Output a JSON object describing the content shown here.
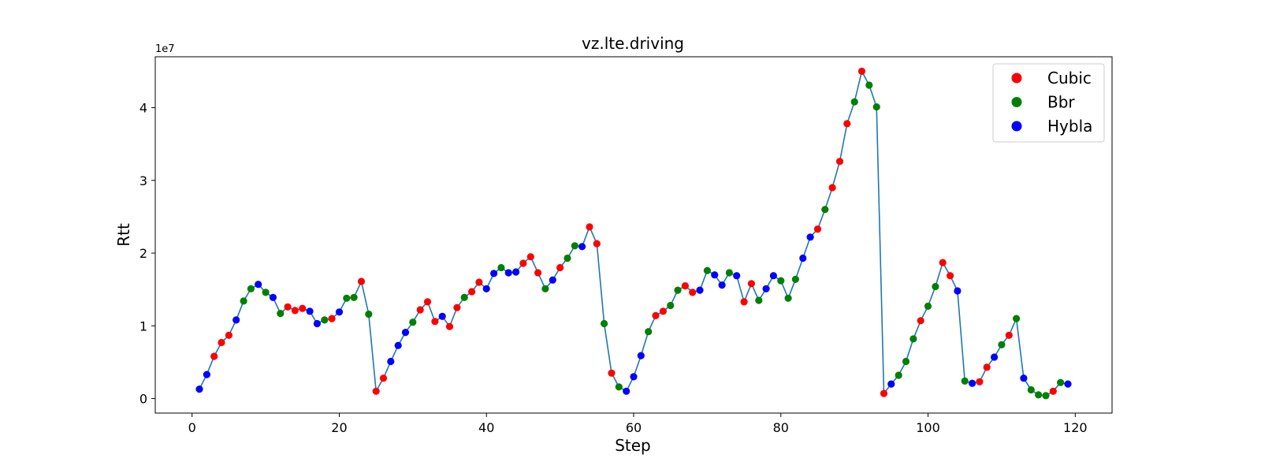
{
  "chart_data": {
    "type": "scatter",
    "title": "vz.lte.driving",
    "xlabel": "Step",
    "ylabel": "Rtt",
    "y_offset_label": "1e7",
    "y_scale": 10000000,
    "xlim": [
      -5,
      125
    ],
    "ylim": [
      -2000000,
      47000000
    ],
    "x_ticks": [
      0,
      20,
      40,
      60,
      80,
      100,
      120
    ],
    "y_ticks": [
      0,
      10000000,
      20000000,
      30000000,
      40000000
    ],
    "y_tick_labels": [
      "0",
      "1",
      "2",
      "3",
      "4"
    ],
    "grid": false,
    "legend_position": "top-right",
    "line_color": "#1f77b4",
    "series": [
      {
        "name": "Cubic",
        "color": "#ff0000"
      },
      {
        "name": "Bbr",
        "color": "#008000"
      },
      {
        "name": "Hybla",
        "color": "#0000ff"
      }
    ],
    "points": [
      {
        "x": 1,
        "y": 1300000,
        "s": "Hybla"
      },
      {
        "x": 2,
        "y": 3300000,
        "s": "Hybla"
      },
      {
        "x": 3,
        "y": 5800000,
        "s": "Cubic"
      },
      {
        "x": 4,
        "y": 7700000,
        "s": "Cubic"
      },
      {
        "x": 5,
        "y": 8700000,
        "s": "Cubic"
      },
      {
        "x": 6,
        "y": 10800000,
        "s": "Hybla"
      },
      {
        "x": 7,
        "y": 13400000,
        "s": "Bbr"
      },
      {
        "x": 8,
        "y": 15100000,
        "s": "Bbr"
      },
      {
        "x": 9,
        "y": 15700000,
        "s": "Hybla"
      },
      {
        "x": 10,
        "y": 14600000,
        "s": "Bbr"
      },
      {
        "x": 11,
        "y": 13900000,
        "s": "Hybla"
      },
      {
        "x": 12,
        "y": 11700000,
        "s": "Bbr"
      },
      {
        "x": 13,
        "y": 12600000,
        "s": "Cubic"
      },
      {
        "x": 14,
        "y": 12100000,
        "s": "Cubic"
      },
      {
        "x": 15,
        "y": 12400000,
        "s": "Cubic"
      },
      {
        "x": 16,
        "y": 12000000,
        "s": "Hybla"
      },
      {
        "x": 17,
        "y": 10300000,
        "s": "Hybla"
      },
      {
        "x": 18,
        "y": 10800000,
        "s": "Bbr"
      },
      {
        "x": 19,
        "y": 11000000,
        "s": "Cubic"
      },
      {
        "x": 20,
        "y": 11900000,
        "s": "Hybla"
      },
      {
        "x": 21,
        "y": 13800000,
        "s": "Bbr"
      },
      {
        "x": 22,
        "y": 13900000,
        "s": "Bbr"
      },
      {
        "x": 23,
        "y": 16100000,
        "s": "Cubic"
      },
      {
        "x": 24,
        "y": 11600000,
        "s": "Bbr"
      },
      {
        "x": 25,
        "y": 1000000,
        "s": "Cubic"
      },
      {
        "x": 26,
        "y": 2800000,
        "s": "Cubic"
      },
      {
        "x": 27,
        "y": 5100000,
        "s": "Hybla"
      },
      {
        "x": 28,
        "y": 7300000,
        "s": "Hybla"
      },
      {
        "x": 29,
        "y": 9100000,
        "s": "Hybla"
      },
      {
        "x": 30,
        "y": 10500000,
        "s": "Bbr"
      },
      {
        "x": 31,
        "y": 12200000,
        "s": "Cubic"
      },
      {
        "x": 32,
        "y": 13300000,
        "s": "Cubic"
      },
      {
        "x": 33,
        "y": 10600000,
        "s": "Cubic"
      },
      {
        "x": 34,
        "y": 11300000,
        "s": "Hybla"
      },
      {
        "x": 35,
        "y": 9900000,
        "s": "Cubic"
      },
      {
        "x": 36,
        "y": 12500000,
        "s": "Cubic"
      },
      {
        "x": 37,
        "y": 13900000,
        "s": "Bbr"
      },
      {
        "x": 38,
        "y": 14700000,
        "s": "Cubic"
      },
      {
        "x": 39,
        "y": 16000000,
        "s": "Cubic"
      },
      {
        "x": 40,
        "y": 15100000,
        "s": "Hybla"
      },
      {
        "x": 41,
        "y": 17200000,
        "s": "Hybla"
      },
      {
        "x": 42,
        "y": 18000000,
        "s": "Bbr"
      },
      {
        "x": 43,
        "y": 17300000,
        "s": "Hybla"
      },
      {
        "x": 44,
        "y": 17400000,
        "s": "Hybla"
      },
      {
        "x": 45,
        "y": 18600000,
        "s": "Cubic"
      },
      {
        "x": 46,
        "y": 19500000,
        "s": "Cubic"
      },
      {
        "x": 47,
        "y": 17300000,
        "s": "Cubic"
      },
      {
        "x": 48,
        "y": 15100000,
        "s": "Bbr"
      },
      {
        "x": 49,
        "y": 16300000,
        "s": "Hybla"
      },
      {
        "x": 50,
        "y": 18000000,
        "s": "Cubic"
      },
      {
        "x": 51,
        "y": 19300000,
        "s": "Bbr"
      },
      {
        "x": 52,
        "y": 21000000,
        "s": "Bbr"
      },
      {
        "x": 53,
        "y": 20900000,
        "s": "Hybla"
      },
      {
        "x": 54,
        "y": 23600000,
        "s": "Cubic"
      },
      {
        "x": 55,
        "y": 21300000,
        "s": "Cubic"
      },
      {
        "x": 56,
        "y": 10300000,
        "s": "Bbr"
      },
      {
        "x": 57,
        "y": 3500000,
        "s": "Cubic"
      },
      {
        "x": 58,
        "y": 1600000,
        "s": "Bbr"
      },
      {
        "x": 59,
        "y": 1000000,
        "s": "Hybla"
      },
      {
        "x": 60,
        "y": 3000000,
        "s": "Hybla"
      },
      {
        "x": 61,
        "y": 5900000,
        "s": "Hybla"
      },
      {
        "x": 62,
        "y": 9200000,
        "s": "Bbr"
      },
      {
        "x": 63,
        "y": 11400000,
        "s": "Cubic"
      },
      {
        "x": 64,
        "y": 12000000,
        "s": "Cubic"
      },
      {
        "x": 65,
        "y": 12800000,
        "s": "Bbr"
      },
      {
        "x": 66,
        "y": 14900000,
        "s": "Bbr"
      },
      {
        "x": 67,
        "y": 15500000,
        "s": "Cubic"
      },
      {
        "x": 68,
        "y": 14600000,
        "s": "Cubic"
      },
      {
        "x": 69,
        "y": 14900000,
        "s": "Hybla"
      },
      {
        "x": 70,
        "y": 17600000,
        "s": "Bbr"
      },
      {
        "x": 71,
        "y": 17000000,
        "s": "Hybla"
      },
      {
        "x": 72,
        "y": 15600000,
        "s": "Hybla"
      },
      {
        "x": 73,
        "y": 17300000,
        "s": "Bbr"
      },
      {
        "x": 74,
        "y": 16900000,
        "s": "Hybla"
      },
      {
        "x": 75,
        "y": 13300000,
        "s": "Cubic"
      },
      {
        "x": 76,
        "y": 15800000,
        "s": "Cubic"
      },
      {
        "x": 77,
        "y": 13500000,
        "s": "Bbr"
      },
      {
        "x": 78,
        "y": 15100000,
        "s": "Hybla"
      },
      {
        "x": 79,
        "y": 16900000,
        "s": "Hybla"
      },
      {
        "x": 80,
        "y": 16200000,
        "s": "Bbr"
      },
      {
        "x": 81,
        "y": 13800000,
        "s": "Bbr"
      },
      {
        "x": 82,
        "y": 16400000,
        "s": "Bbr"
      },
      {
        "x": 83,
        "y": 19300000,
        "s": "Hybla"
      },
      {
        "x": 84,
        "y": 22200000,
        "s": "Hybla"
      },
      {
        "x": 85,
        "y": 23300000,
        "s": "Cubic"
      },
      {
        "x": 86,
        "y": 26000000,
        "s": "Bbr"
      },
      {
        "x": 87,
        "y": 29000000,
        "s": "Cubic"
      },
      {
        "x": 88,
        "y": 32600000,
        "s": "Cubic"
      },
      {
        "x": 89,
        "y": 37800000,
        "s": "Cubic"
      },
      {
        "x": 90,
        "y": 40800000,
        "s": "Bbr"
      },
      {
        "x": 91,
        "y": 45000000,
        "s": "Cubic"
      },
      {
        "x": 92,
        "y": 43100000,
        "s": "Bbr"
      },
      {
        "x": 93,
        "y": 40100000,
        "s": "Bbr"
      },
      {
        "x": 94,
        "y": 700000,
        "s": "Cubic"
      },
      {
        "x": 95,
        "y": 2000000,
        "s": "Hybla"
      },
      {
        "x": 96,
        "y": 3200000,
        "s": "Bbr"
      },
      {
        "x": 97,
        "y": 5100000,
        "s": "Bbr"
      },
      {
        "x": 98,
        "y": 8200000,
        "s": "Bbr"
      },
      {
        "x": 99,
        "y": 10700000,
        "s": "Cubic"
      },
      {
        "x": 100,
        "y": 12700000,
        "s": "Bbr"
      },
      {
        "x": 101,
        "y": 15400000,
        "s": "Bbr"
      },
      {
        "x": 102,
        "y": 18700000,
        "s": "Cubic"
      },
      {
        "x": 103,
        "y": 16900000,
        "s": "Cubic"
      },
      {
        "x": 104,
        "y": 14800000,
        "s": "Hybla"
      },
      {
        "x": 105,
        "y": 2400000,
        "s": "Bbr"
      },
      {
        "x": 106,
        "y": 2100000,
        "s": "Hybla"
      },
      {
        "x": 107,
        "y": 2300000,
        "s": "Cubic"
      },
      {
        "x": 108,
        "y": 4300000,
        "s": "Cubic"
      },
      {
        "x": 109,
        "y": 5700000,
        "s": "Hybla"
      },
      {
        "x": 110,
        "y": 7400000,
        "s": "Bbr"
      },
      {
        "x": 111,
        "y": 8700000,
        "s": "Cubic"
      },
      {
        "x": 112,
        "y": 11000000,
        "s": "Bbr"
      },
      {
        "x": 113,
        "y": 2800000,
        "s": "Hybla"
      },
      {
        "x": 114,
        "y": 1200000,
        "s": "Bbr"
      },
      {
        "x": 115,
        "y": 500000,
        "s": "Bbr"
      },
      {
        "x": 116,
        "y": 400000,
        "s": "Bbr"
      },
      {
        "x": 117,
        "y": 1000000,
        "s": "Cubic"
      },
      {
        "x": 118,
        "y": 2200000,
        "s": "Bbr"
      },
      {
        "x": 119,
        "y": 2000000,
        "s": "Hybla"
      }
    ]
  }
}
